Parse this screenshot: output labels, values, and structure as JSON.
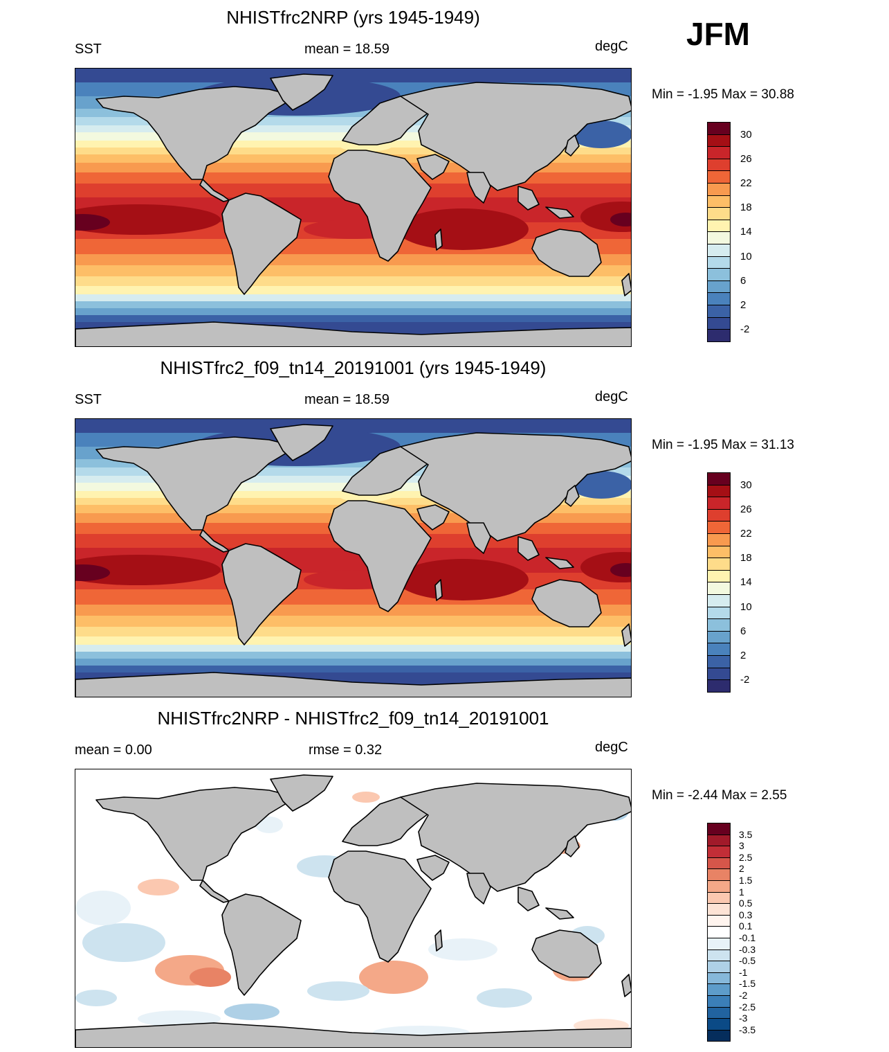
{
  "season": "JFM",
  "panels": [
    {
      "title": "NHISTfrc2NRP (yrs 1945-1949)",
      "left_label": "SST",
      "center_label": "mean =  18.59",
      "right_label": "degC",
      "minmax": "Min =  -1.95 Max =  30.88",
      "type": "sst",
      "colorbar_labels": [
        "30",
        "26",
        "22",
        "18",
        "14",
        "10",
        "6",
        "2",
        "-2"
      ]
    },
    {
      "title": "NHISTfrc2_f09_tn14_20191001 (yrs 1945-1949)",
      "left_label": "SST",
      "center_label": "mean =  18.59",
      "right_label": "degC",
      "minmax": "Min =  -1.95 Max =  31.13",
      "type": "sst",
      "colorbar_labels": [
        "30",
        "26",
        "22",
        "18",
        "14",
        "10",
        "6",
        "2",
        "-2"
      ]
    },
    {
      "title": "NHISTfrc2NRP - NHISTfrc2_f09_tn14_20191001",
      "left_label": "mean =   0.00",
      "center_label": "rmse =   0.32",
      "right_label": "degC",
      "minmax": "Min =  -2.44 Max =   2.55",
      "type": "diff",
      "colorbar_labels": [
        "3.5",
        "3",
        "2.5",
        "2",
        "1.5",
        "1",
        "0.5",
        "0.3",
        "0.1",
        "-0.1",
        "-0.3",
        "-0.5",
        "-1",
        "-1.5",
        "-2",
        "-2.5",
        "-3",
        "-3.5"
      ]
    }
  ],
  "colors": {
    "sst_scale": [
      "#67001f",
      "#a50f15",
      "#c9252a",
      "#de3f2e",
      "#ef6637",
      "#f89a4f",
      "#fdbe67",
      "#fedc8a",
      "#fff3b0",
      "#f3f9df",
      "#d6ecef",
      "#b4daea",
      "#8cc0dc",
      "#68a2cc",
      "#4a82bc",
      "#3b62a6",
      "#344a92",
      "#2d2c6e"
    ],
    "diff_scale": [
      "#67001f",
      "#a11a2a",
      "#c22e37",
      "#d6564a",
      "#e88365",
      "#f4a888",
      "#fbc8b0",
      "#fde3d5",
      "#fff4ee",
      "#ffffff",
      "#e8f2f8",
      "#cde3ef",
      "#aed0e6",
      "#86b8da",
      "#5d9cca",
      "#3b7fb8",
      "#2163a0",
      "#0b4a86",
      "#052d5c"
    ],
    "land": "#bfbfbf"
  }
}
